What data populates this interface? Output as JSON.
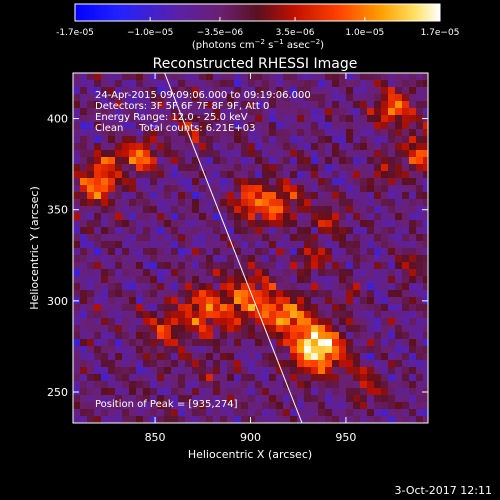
{
  "colorbar": {
    "ticks": [
      "-1.7e-05",
      "−1.0e−05",
      "−3.5e−06",
      "3.5e−06",
      "1.0e−05",
      "1.7e−05"
    ],
    "tick_values": [
      -1.7e-05,
      -1e-05,
      -3.5e-06,
      3.5e-06,
      1e-05,
      1.7e-05
    ],
    "range": [
      -1.7e-05,
      1.7e-05
    ],
    "units_parts": {
      "pre": "(photons cm",
      "sup1": "−2",
      "mid": " s",
      "sup2": "−1",
      "mid2": " asec",
      "sup3": "−2",
      "post": ")"
    },
    "colormap": "blue-purple-red-orange-yellow-white"
  },
  "chart_data": {
    "type": "heatmap",
    "title": "Reconstructed RHESSI Image",
    "xlabel": "Heliocentric X (arcsec)",
    "ylabel": "Heliocentric Y (arcsec)",
    "xlim": [
      807,
      993
    ],
    "ylim": [
      233,
      425
    ],
    "xticks": [
      850,
      900,
      950
    ],
    "yticks": [
      250,
      300,
      350,
      400
    ],
    "xtick_labels": [
      "850",
      "900",
      "950"
    ],
    "ytick_labels": [
      "250",
      "300",
      "350",
      "400"
    ],
    "annotations": [
      "24-Apr-2015 09:09:06.000 to 09:19:06.000",
      "Detectors: 3F 5F 6F 7F 8F 9F, Att 0",
      "Energy Range: 12.0 - 25.0 keV",
      "Clean     Total counts: 6.21E+03"
    ],
    "peak_label": "Position of Peak = [935,274]",
    "peak": [
      935,
      274
    ],
    "sources": [
      {
        "x": 935,
        "y": 274,
        "sigma": 9,
        "amp": 1.0
      },
      {
        "x": 920,
        "y": 292,
        "sigma": 7,
        "amp": 0.6
      },
      {
        "x": 900,
        "y": 300,
        "sigma": 10,
        "amp": 0.55
      },
      {
        "x": 875,
        "y": 295,
        "sigma": 9,
        "amp": 0.5
      },
      {
        "x": 855,
        "y": 282,
        "sigma": 8,
        "amp": 0.35
      },
      {
        "x": 913,
        "y": 353,
        "sigma": 9,
        "amp": 0.5
      },
      {
        "x": 898,
        "y": 355,
        "sigma": 6,
        "amp": 0.4
      },
      {
        "x": 940,
        "y": 343,
        "sigma": 6,
        "amp": 0.3
      },
      {
        "x": 933,
        "y": 322,
        "sigma": 5,
        "amp": 0.35
      },
      {
        "x": 843,
        "y": 379,
        "sigma": 6,
        "amp": 0.6
      },
      {
        "x": 827,
        "y": 378,
        "sigma": 5,
        "amp": 0.35
      },
      {
        "x": 820,
        "y": 364,
        "sigma": 7,
        "amp": 0.65
      },
      {
        "x": 870,
        "y": 392,
        "sigma": 6,
        "amp": 0.3
      },
      {
        "x": 975,
        "y": 405,
        "sigma": 7,
        "amp": 0.55
      },
      {
        "x": 990,
        "y": 380,
        "sigma": 8,
        "amp": 0.45
      },
      {
        "x": 968,
        "y": 370,
        "sigma": 5,
        "amp": 0.3
      },
      {
        "x": 985,
        "y": 320,
        "sigma": 6,
        "amp": 0.25
      },
      {
        "x": 950,
        "y": 300,
        "sigma": 6,
        "amp": 0.2
      },
      {
        "x": 960,
        "y": 258,
        "sigma": 6,
        "amp": 0.2
      },
      {
        "x": 880,
        "y": 260,
        "sigma": 7,
        "amp": 0.15
      },
      {
        "x": 962,
        "y": 250,
        "sigma": 5,
        "amp": 0.25
      }
    ],
    "limb_line": {
      "x": [
        855,
        927
      ],
      "y": [
        425,
        233
      ]
    }
  },
  "footer": {
    "date": "3-Oct-2017 12:11"
  }
}
